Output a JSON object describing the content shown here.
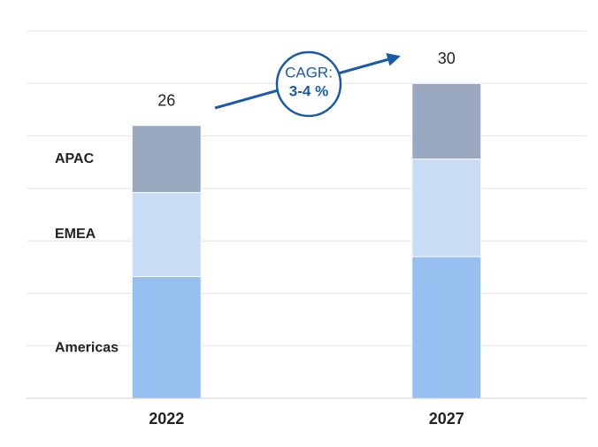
{
  "chart_data": {
    "type": "stacked_bar",
    "categories": [
      "2022",
      "2027"
    ],
    "series": [
      {
        "name": "Americas",
        "color": "#97bff0",
        "values": [
          11.6,
          13.5
        ]
      },
      {
        "name": "EMEA",
        "color": "#c9dcf5",
        "values": [
          8,
          9.3
        ]
      },
      {
        "name": "APAC",
        "color": "#9aa9c0",
        "values": [
          6.4,
          7.2
        ]
      }
    ],
    "totals": [
      26,
      30
    ],
    "ylim": [
      0,
      35
    ],
    "yticks": [
      0,
      5,
      10,
      15,
      20,
      25,
      30,
      35
    ],
    "grid": true,
    "annotation": {
      "label": "CAGR:",
      "value": "3-4 %",
      "color": "#1a5ba6"
    }
  }
}
